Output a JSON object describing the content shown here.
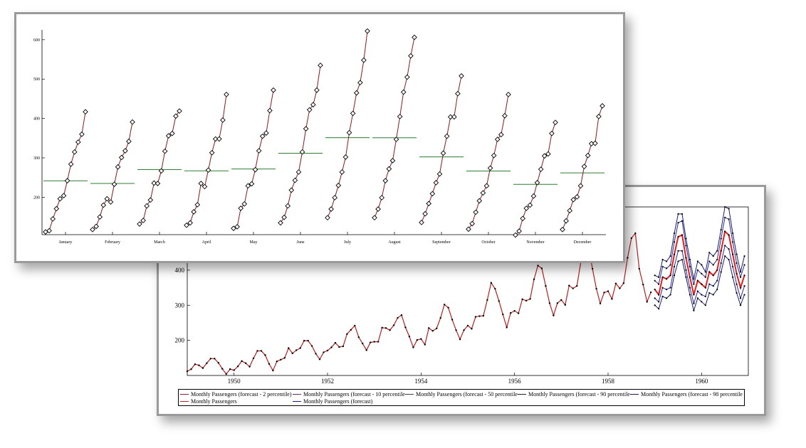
{
  "chart_data": [
    {
      "type": "line",
      "title": "",
      "xlabel": "",
      "ylabel": "",
      "x_ticks": [
        "1950",
        "1952",
        "1954",
        "1956",
        "1958",
        "1960"
      ],
      "y_ticks": [
        "200",
        "300",
        "400"
      ],
      "ylim": [
        100,
        580
      ],
      "legend": {
        "placement": "bottom",
        "entries": [
          "Monthly Passengers (forecast -  2 percentile)",
          "Monthly Passengers (forecast - 10 percentile)",
          "Monthly Passengers (forecast - 50 percentile)",
          "Monthly Passengers (forecast - 90 percentile)",
          "Monthly Passengers (forecast - 98 percentile)",
          "Monthly Passengers",
          "Monthly Passengers (forecast)"
        ]
      },
      "x_start_year": 1949,
      "monthly_passengers": [
        112,
        118,
        132,
        129,
        121,
        135,
        148,
        148,
        136,
        119,
        104,
        118,
        115,
        126,
        141,
        135,
        125,
        149,
        170,
        170,
        158,
        133,
        114,
        140,
        145,
        150,
        178,
        163,
        172,
        178,
        199,
        199,
        184,
        162,
        146,
        166,
        171,
        180,
        193,
        181,
        183,
        218,
        230,
        242,
        209,
        191,
        172,
        194,
        196,
        196,
        236,
        235,
        229,
        243,
        264,
        272,
        237,
        211,
        180,
        201,
        204,
        188,
        235,
        227,
        234,
        264,
        302,
        293,
        259,
        229,
        203,
        229,
        242,
        233,
        267,
        269,
        270,
        315,
        364,
        347,
        312,
        274,
        237,
        278,
        284,
        277,
        317,
        313,
        318,
        374,
        413,
        405,
        355,
        306,
        271,
        306,
        315,
        301,
        356,
        348,
        355,
        422,
        465,
        467,
        404,
        347,
        305,
        336,
        340,
        318,
        362,
        348,
        363,
        435,
        491,
        505,
        404,
        359,
        310,
        337
      ],
      "forecast_series": [
        {
          "name": "Monthly Passengers (forecast -  2 percentile)",
          "color": "#1a1a6e",
          "values": [
            300,
            290,
            325,
            320,
            330,
            385,
            425,
            430,
            380,
            330,
            285,
            320,
            310,
            300,
            335,
            330,
            345,
            395,
            440,
            430,
            380,
            335,
            300,
            330
          ]
        },
        {
          "name": "Monthly Passengers (forecast - 10 percentile)",
          "color": "#2a2a90",
          "values": [
            320,
            310,
            350,
            345,
            350,
            410,
            455,
            455,
            400,
            350,
            305,
            340,
            330,
            325,
            360,
            355,
            370,
            420,
            470,
            460,
            410,
            360,
            320,
            355
          ]
        },
        {
          "name": "Monthly Passengers (forecast - 50 percentile)",
          "color": "#e02020",
          "values": [
            345,
            330,
            380,
            375,
            385,
            445,
            495,
            500,
            435,
            380,
            330,
            370,
            360,
            350,
            395,
            385,
            400,
            455,
            510,
            500,
            445,
            390,
            350,
            385
          ]
        },
        {
          "name": "Monthly Passengers (forecast - 90 percentile)",
          "color": "#2a2a90",
          "values": [
            370,
            360,
            410,
            405,
            415,
            480,
            535,
            540,
            470,
            410,
            360,
            400,
            390,
            380,
            425,
            415,
            430,
            490,
            550,
            545,
            480,
            420,
            380,
            415
          ]
        },
        {
          "name": "Monthly Passengers (forecast - 98 percentile)",
          "color": "#1a1a6e",
          "values": [
            385,
            380,
            430,
            425,
            440,
            505,
            560,
            560,
            490,
            430,
            375,
            425,
            415,
            395,
            450,
            440,
            455,
            515,
            580,
            575,
            505,
            445,
            395,
            440
          ]
        }
      ]
    },
    {
      "type": "scatter",
      "title": "",
      "xlabel": "",
      "ylabel": "",
      "categories": [
        "January",
        "February",
        "March",
        "April",
        "May",
        "June",
        "July",
        "August",
        "September",
        "October",
        "November",
        "December"
      ],
      "y_ticks": [
        "200",
        "300",
        "400",
        "500",
        "600"
      ],
      "ylim": [
        105,
        625
      ],
      "years": [
        1949,
        1950,
        1951,
        1952,
        1953,
        1954,
        1955,
        1956,
        1957,
        1958,
        1959,
        1960
      ],
      "series": [
        {
          "month": "January",
          "mean": 241.75,
          "values": [
            112,
            115,
            145,
            171,
            196,
            204,
            242,
            284,
            315,
            340,
            360,
            417
          ]
        },
        {
          "month": "February",
          "mean": 235.0,
          "values": [
            118,
            126,
            150,
            180,
            196,
            188,
            233,
            277,
            301,
            318,
            342,
            391
          ]
        },
        {
          "month": "March",
          "mean": 270.17,
          "values": [
            132,
            141,
            178,
            193,
            236,
            235,
            267,
            317,
            356,
            362,
            406,
            419
          ]
        },
        {
          "month": "April",
          "mean": 267.08,
          "values": [
            129,
            135,
            163,
            181,
            235,
            227,
            269,
            313,
            348,
            348,
            396,
            461
          ]
        },
        {
          "month": "May",
          "mean": 271.83,
          "values": [
            121,
            125,
            172,
            183,
            229,
            234,
            270,
            318,
            355,
            363,
            420,
            472
          ]
        },
        {
          "month": "June",
          "mean": 311.67,
          "values": [
            135,
            149,
            178,
            218,
            243,
            264,
            315,
            374,
            422,
            435,
            472,
            535
          ]
        },
        {
          "month": "July",
          "mean": 351.33,
          "values": [
            148,
            170,
            199,
            230,
            264,
            302,
            364,
            413,
            465,
            491,
            548,
            622
          ]
        },
        {
          "month": "August",
          "mean": 351.08,
          "values": [
            148,
            170,
            199,
            242,
            272,
            293,
            347,
            405,
            467,
            505,
            559,
            606
          ]
        },
        {
          "month": "September",
          "mean": 302.42,
          "values": [
            136,
            158,
            184,
            209,
            237,
            259,
            312,
            355,
            404,
            404,
            463,
            508
          ]
        },
        {
          "month": "October",
          "mean": 266.58,
          "values": [
            119,
            133,
            162,
            191,
            211,
            229,
            274,
            306,
            347,
            359,
            407,
            461
          ]
        },
        {
          "month": "November",
          "mean": 232.83,
          "values": [
            104,
            114,
            146,
            172,
            180,
            203,
            237,
            271,
            305,
            310,
            362,
            390
          ]
        },
        {
          "month": "December",
          "mean": 261.83,
          "values": [
            118,
            140,
            166,
            194,
            201,
            229,
            278,
            306,
            336,
            337,
            405,
            432
          ]
        }
      ],
      "colors": {
        "line": "#8b1a1a",
        "marker": "#000000",
        "mean_line": "#2e7d32"
      }
    }
  ]
}
